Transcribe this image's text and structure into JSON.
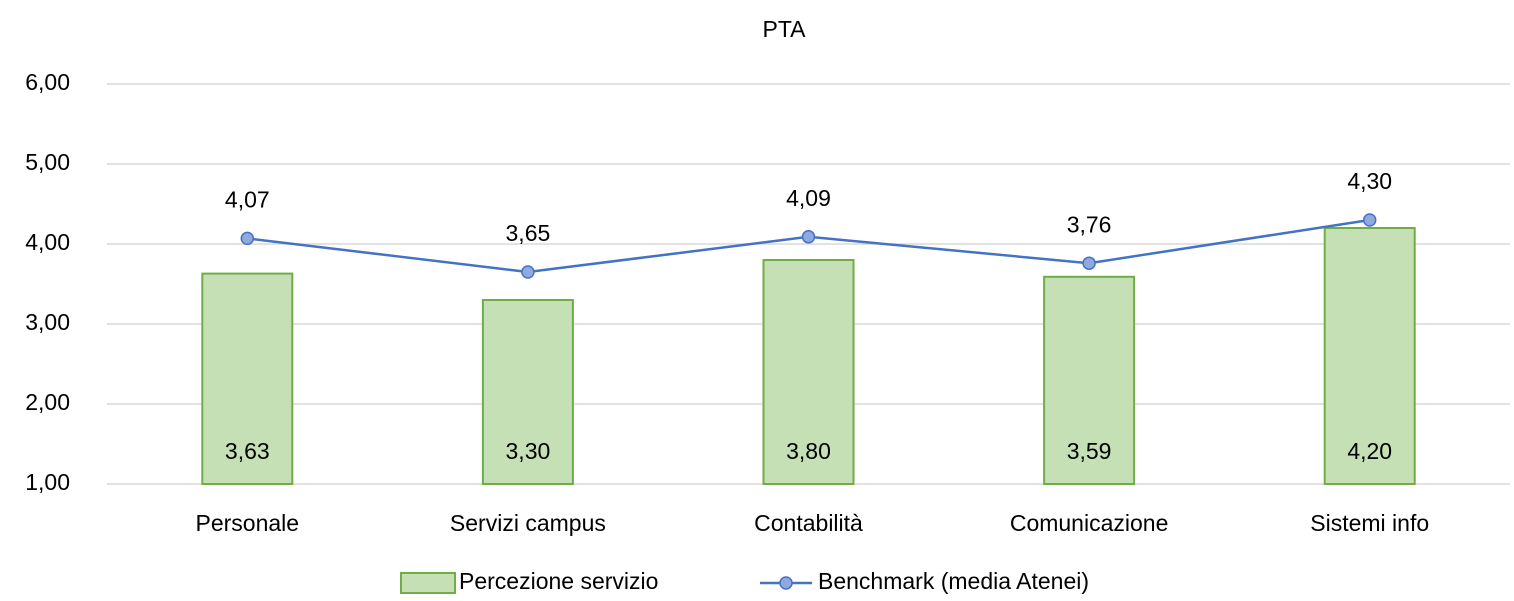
{
  "chart_data": {
    "type": "bar",
    "title": "PTA",
    "categories": [
      "Personale",
      "Servizi campus",
      "Contabilità",
      "Comunicazione",
      "Sistemi info"
    ],
    "series": [
      {
        "name": "Percezione servizio",
        "type": "bar",
        "color": "#c5e0b4",
        "edge_color": "#70ad47",
        "values": [
          3.63,
          3.3,
          3.8,
          3.59,
          4.2
        ],
        "value_labels": [
          "3,63",
          "3,30",
          "3,80",
          "3,59",
          "4,20"
        ]
      },
      {
        "name": "Benchmark (media Atenei)",
        "type": "line",
        "color": "#4472c4",
        "marker_color": "#8faadc",
        "values": [
          4.07,
          3.65,
          4.09,
          3.76,
          4.3
        ],
        "value_labels": [
          "4,07",
          "3,65",
          "4,09",
          "3,76",
          "4,30"
        ]
      }
    ],
    "ylim": [
      1,
      6
    ],
    "yticks": [
      {
        "value": 1,
        "label": "1,00"
      },
      {
        "value": 2,
        "label": "2,00"
      },
      {
        "value": 3,
        "label": "3,00"
      },
      {
        "value": 4,
        "label": "4,00"
      },
      {
        "value": 5,
        "label": "5,00"
      },
      {
        "value": 6,
        "label": "6,00"
      }
    ],
    "grid": true,
    "legend": "bottom"
  }
}
